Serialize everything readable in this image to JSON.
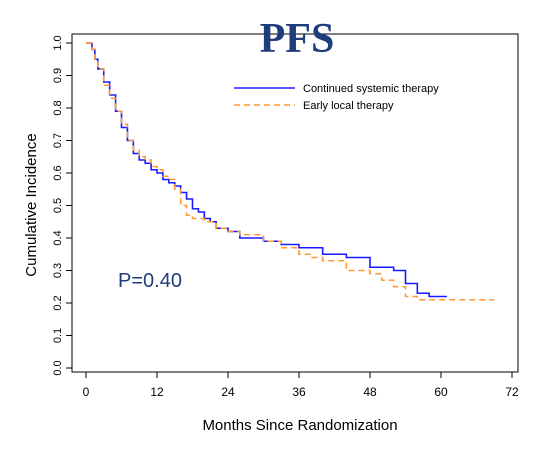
{
  "chart_data": {
    "type": "line",
    "title": "PFS",
    "xlabel": "Months Since Randomization",
    "ylabel": "Cumulative Incidence",
    "xlim": [
      0,
      72
    ],
    "ylim": [
      0,
      1.0
    ],
    "xticks": [
      "0",
      "12",
      "24",
      "36",
      "48",
      "60",
      "72"
    ],
    "yticks": [
      "0.0",
      "0.1",
      "0.2",
      "0.3",
      "0.4",
      "0.5",
      "0.6",
      "0.7",
      "0.8",
      "0.9",
      "1.0"
    ],
    "grid": false,
    "legend_position": "top-right",
    "annotation": "P=0.40",
    "colors": {
      "title": "#1f3d7a",
      "annotation": "#1f3d7a",
      "axes": "#000000"
    },
    "series": [
      {
        "name": "Continued systemic therapy",
        "color": "#1a1aff",
        "style": "solid",
        "x": [
          0,
          1,
          1.5,
          2,
          3,
          4,
          5,
          6,
          7,
          8,
          9,
          10,
          11,
          12,
          13,
          14,
          15,
          16,
          17,
          18,
          19,
          20,
          21,
          22,
          24,
          26,
          28,
          30,
          33,
          36,
          40,
          44,
          48,
          50,
          52,
          54,
          56,
          58,
          61
        ],
        "y": [
          1.0,
          0.98,
          0.95,
          0.92,
          0.88,
          0.84,
          0.79,
          0.74,
          0.7,
          0.66,
          0.64,
          0.63,
          0.61,
          0.6,
          0.58,
          0.57,
          0.56,
          0.54,
          0.52,
          0.49,
          0.48,
          0.46,
          0.45,
          0.43,
          0.42,
          0.4,
          0.4,
          0.39,
          0.38,
          0.37,
          0.35,
          0.34,
          0.31,
          0.31,
          0.3,
          0.26,
          0.23,
          0.22,
          0.22
        ]
      },
      {
        "name": "Early local therapy",
        "color": "#ff9933",
        "style": "dashed",
        "x": [
          0,
          1,
          1.5,
          2,
          3,
          4,
          5,
          6,
          7,
          8,
          9,
          10,
          11,
          12,
          13,
          14,
          15,
          16,
          17,
          18,
          20,
          22,
          24,
          26,
          28,
          30,
          33,
          36,
          38,
          40,
          44,
          48,
          50,
          52,
          54,
          56,
          60,
          64,
          69
        ],
        "y": [
          1.0,
          0.98,
          0.95,
          0.92,
          0.87,
          0.83,
          0.79,
          0.75,
          0.7,
          0.67,
          0.65,
          0.64,
          0.62,
          0.61,
          0.59,
          0.58,
          0.55,
          0.5,
          0.47,
          0.46,
          0.45,
          0.43,
          0.42,
          0.41,
          0.41,
          0.39,
          0.37,
          0.35,
          0.34,
          0.33,
          0.3,
          0.29,
          0.27,
          0.25,
          0.22,
          0.21,
          0.21,
          0.21,
          0.21
        ]
      }
    ]
  }
}
